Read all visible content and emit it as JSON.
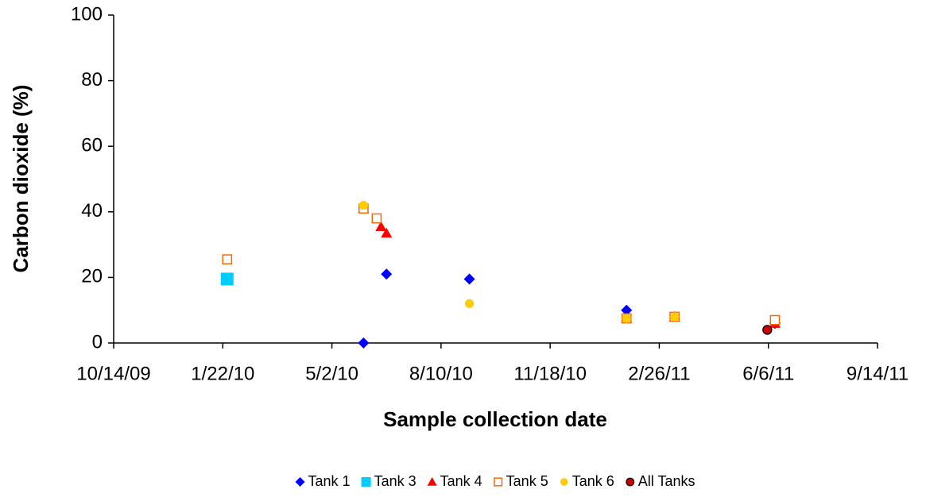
{
  "chart_data": {
    "type": "scatter",
    "x_label": "Sample collection date",
    "y_label": "Carbon dioxide (%)",
    "xlim": [
      "2009-10-14",
      "2011-09-14"
    ],
    "xticks": [
      {
        "value": "2009-10-14",
        "label": "10/14/09"
      },
      {
        "value": "2010-01-22",
        "label": "1/22/10"
      },
      {
        "value": "2010-05-02",
        "label": "5/2/10"
      },
      {
        "value": "2010-08-10",
        "label": "8/10/10"
      },
      {
        "value": "2010-11-18",
        "label": "11/18/10"
      },
      {
        "value": "2011-02-26",
        "label": "2/26/11"
      },
      {
        "value": "2011-06-06",
        "label": "6/6/11"
      },
      {
        "value": "2011-09-14",
        "label": "9/14/11"
      }
    ],
    "ylim": [
      0,
      100
    ],
    "yticks": [
      0,
      20,
      40,
      60,
      80,
      100
    ],
    "grid": false,
    "legend": "bottom",
    "series": [
      {
        "name": "Tank 1",
        "color": "#0000ff",
        "marker": "diamond",
        "x": [
          "2010-05-31",
          "2010-06-21",
          "2010-09-05",
          "2011-01-27",
          "2011-06-12"
        ],
        "values": [
          0,
          21,
          19.5,
          10,
          6
        ]
      },
      {
        "name": "Tank 3",
        "color": "#00ccff",
        "marker": "square",
        "x": [
          "2010-01-26"
        ],
        "values": [
          19.5
        ]
      },
      {
        "name": "Tank 4",
        "color": "#ff0000",
        "marker": "triangle",
        "x": [
          "2010-05-31",
          "2010-06-16",
          "2010-06-21",
          "2011-01-27",
          "2011-03-12",
          "2011-06-12"
        ],
        "values": [
          41,
          35.5,
          33.5,
          7.5,
          8,
          6
        ]
      },
      {
        "name": "Tank 5",
        "color": "#ff6600",
        "marker": "open-square",
        "x": [
          "2010-01-26",
          "2010-05-31",
          "2010-06-12",
          "2011-01-27",
          "2011-03-12",
          "2011-06-12"
        ],
        "values": [
          25.5,
          41,
          38,
          7.5,
          8,
          7
        ]
      },
      {
        "name": "Tank 6",
        "color": "#ffcc00",
        "marker": "circle",
        "x": [
          "2010-05-31",
          "2010-09-05",
          "2011-01-27",
          "2011-03-12"
        ],
        "values": [
          42,
          12,
          7.5,
          8
        ]
      },
      {
        "name": "All Tanks",
        "color": "#cc0000",
        "marker": "outlined-circle",
        "x": [
          "2011-06-05"
        ],
        "values": [
          4
        ]
      }
    ]
  }
}
